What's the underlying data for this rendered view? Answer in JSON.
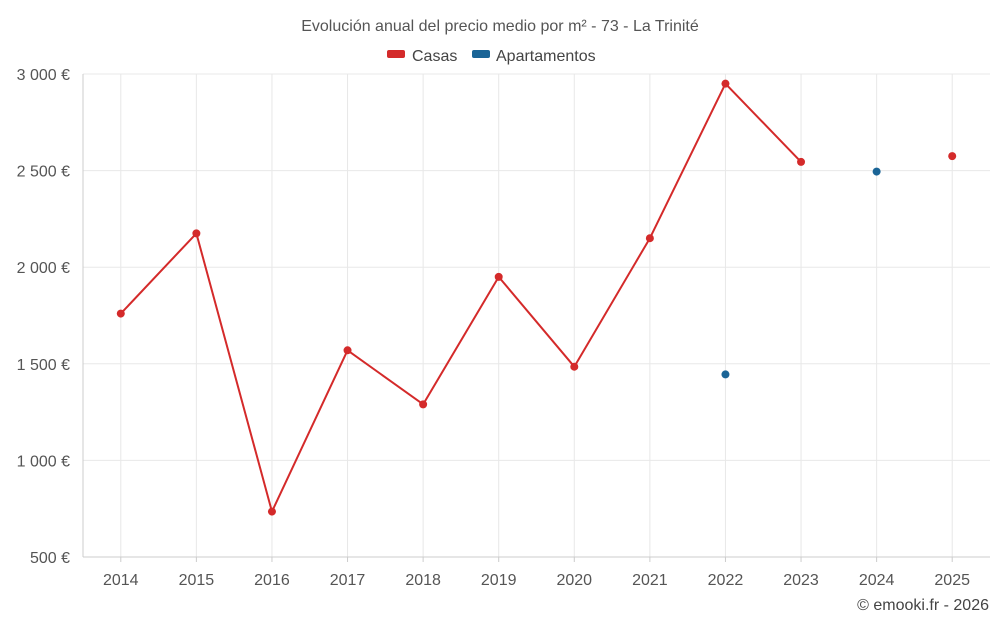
{
  "chart_data": {
    "type": "line",
    "title": "Evolución anual del precio medio por m² - 73 - La Trinité",
    "categories": [
      "2014",
      "2015",
      "2016",
      "2017",
      "2018",
      "2019",
      "2020",
      "2021",
      "2022",
      "2023",
      "2024",
      "2025"
    ],
    "series": [
      {
        "name": "Casas",
        "color": "#d42a2a",
        "values": [
          1760,
          2175,
          735,
          1570,
          1290,
          1950,
          1485,
          2150,
          2950,
          2545,
          null,
          2575
        ]
      },
      {
        "name": "Apartamentos",
        "color": "#1a6496",
        "values": [
          null,
          null,
          null,
          null,
          null,
          null,
          null,
          null,
          1445,
          null,
          2495,
          null
        ]
      }
    ],
    "y_ticks": [
      "500 €",
      "1 000 €",
      "1 500 €",
      "2 000 €",
      "2 500 €",
      "3 000 €"
    ],
    "ylim": [
      500,
      3000
    ],
    "grid": true,
    "legend": "top-center",
    "xlabel": "",
    "ylabel": ""
  },
  "credit": "© emooki.fr - 2026"
}
